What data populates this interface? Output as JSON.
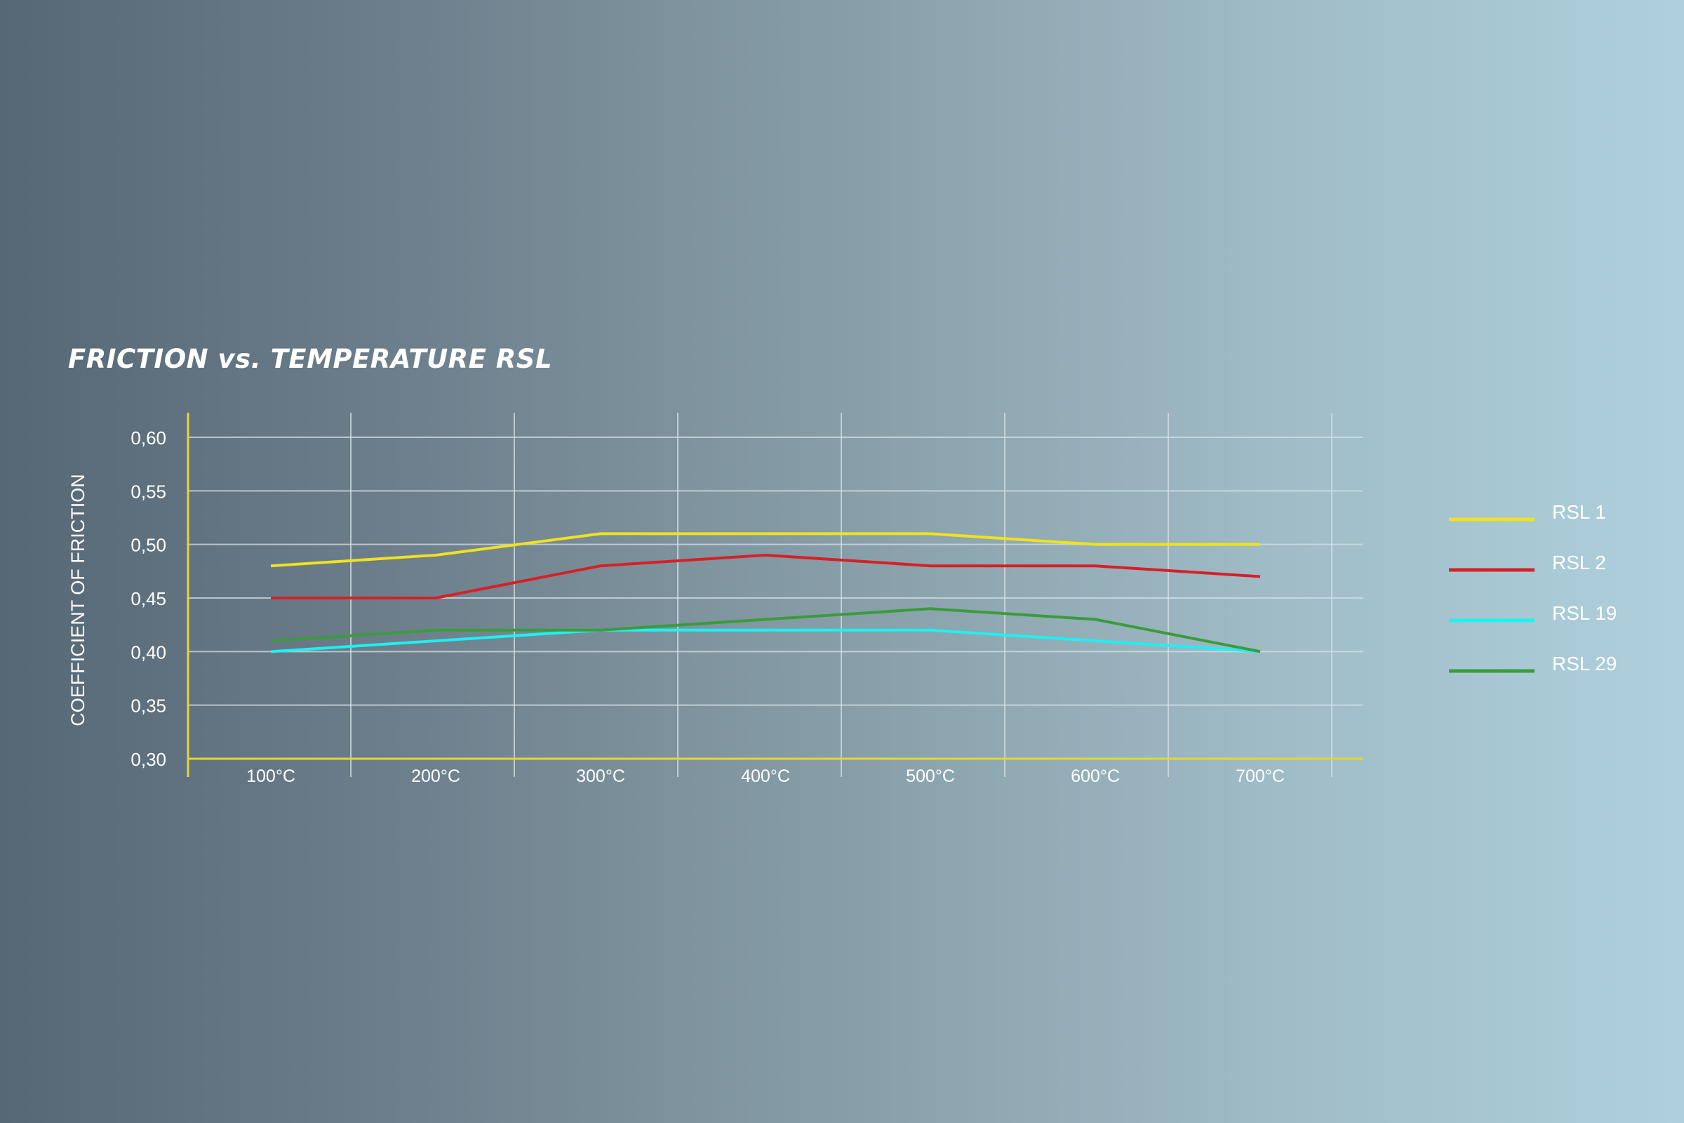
{
  "colors": {
    "grid": "#d6e0e5",
    "axis": "#e3d63c",
    "text": "#ffffff"
  },
  "chart_data": {
    "type": "line",
    "title": "FRICTION vs. TEMPERATURE RSL",
    "xlabel": "",
    "ylabel": "COEFFICIENT OF FRICTION",
    "categories": [
      "100°C",
      "200°C",
      "300°C",
      "400°C",
      "500°C",
      "600°C",
      "700°C"
    ],
    "yticks": [
      "0,30",
      "0,35",
      "0,40",
      "0,45",
      "0,50",
      "0,55",
      "0,60"
    ],
    "ylim": [
      0.3,
      0.6
    ],
    "grid": true,
    "legend_position": "right",
    "series": [
      {
        "name": "RSL 1",
        "color": "#efe21e",
        "values": [
          0.48,
          0.49,
          0.51,
          0.51,
          0.51,
          0.5,
          0.5
        ]
      },
      {
        "name": "RSL 2",
        "color": "#d42127",
        "values": [
          0.45,
          0.45,
          0.48,
          0.49,
          0.48,
          0.48,
          0.47
        ]
      },
      {
        "name": "RSL 19",
        "color": "#1ef0f2",
        "values": [
          0.4,
          0.41,
          0.42,
          0.42,
          0.42,
          0.41,
          0.4
        ]
      },
      {
        "name": "RSL 29",
        "color": "#3b9b3c",
        "values": [
          0.41,
          0.42,
          0.42,
          0.43,
          0.44,
          0.43,
          0.4
        ]
      }
    ]
  }
}
